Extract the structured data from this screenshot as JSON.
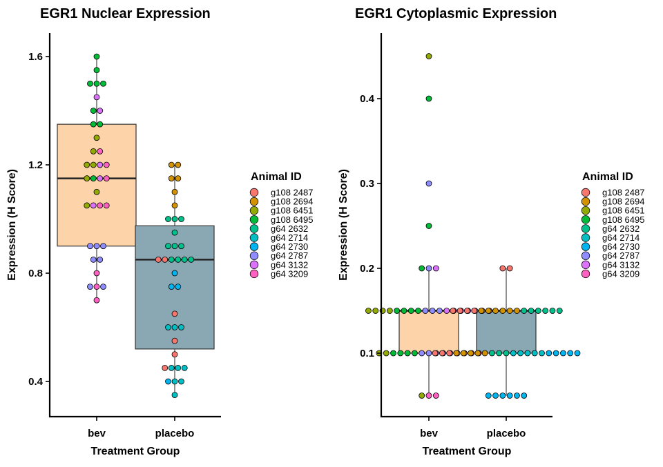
{
  "chart_data": [
    {
      "type": "boxplot",
      "title": "EGR1 Nuclear Expression",
      "xlabel": "Treatment Group",
      "ylabel": "Expression (H Score)",
      "categories": [
        "bev",
        "placebo"
      ],
      "yticks": [
        "0.4",
        "0.8",
        "1.2",
        "1.6"
      ],
      "ylim": [
        0.27,
        1.69
      ],
      "box_colors": [
        "#fdd3a9",
        "#8aa7b4"
      ],
      "boxes": [
        {
          "group": "bev",
          "q1": 0.9,
          "median": 1.15,
          "q3": 1.35,
          "whisker_low": 0.7,
          "whisker_high": 1.6
        },
        {
          "group": "placebo",
          "q1": 0.52,
          "median": 0.85,
          "q3": 0.975,
          "whisker_low": 0.35,
          "whisker_high": 1.2
        }
      ],
      "points": [
        {
          "group": "bev",
          "y": 1.6,
          "colors": [
            "#00BA38"
          ]
        },
        {
          "group": "bev",
          "y": 1.55,
          "colors": [
            "#00BA38"
          ]
        },
        {
          "group": "bev",
          "y": 1.5,
          "colors": [
            "#00BA38",
            "#00BA38",
            "#00BA38"
          ]
        },
        {
          "group": "bev",
          "y": 1.45,
          "colors": [
            "#DB72FB"
          ]
        },
        {
          "group": "bev",
          "y": 1.4,
          "colors": [
            "#00BA38",
            "#DB72FB"
          ]
        },
        {
          "group": "bev",
          "y": 1.35,
          "colors": [
            "#00BA38",
            "#00BA38"
          ]
        },
        {
          "group": "bev",
          "y": 1.3,
          "colors": [
            "#93AA00"
          ]
        },
        {
          "group": "bev",
          "y": 1.25,
          "colors": [
            "#93AA00",
            "#FF61C3"
          ]
        },
        {
          "group": "bev",
          "y": 1.2,
          "colors": [
            "#93AA00",
            "#93AA00",
            "#DB72FB",
            "#FF61C3"
          ]
        },
        {
          "group": "bev",
          "y": 1.15,
          "colors": [
            "#93AA00",
            "#00BA38",
            "#DB72FB",
            "#FF61C3"
          ]
        },
        {
          "group": "bev",
          "y": 1.1,
          "colors": [
            "#93AA00"
          ]
        },
        {
          "group": "bev",
          "y": 1.05,
          "colors": [
            "#93AA00",
            "#DB72FB",
            "#FF61C3",
            "#FF61C3"
          ]
        },
        {
          "group": "bev",
          "y": 0.9,
          "colors": [
            "#8E8CFF",
            "#8E8CFF",
            "#8E8CFF"
          ]
        },
        {
          "group": "bev",
          "y": 0.85,
          "colors": [
            "#8E8CFF",
            "#8E8CFF"
          ]
        },
        {
          "group": "bev",
          "y": 0.8,
          "colors": [
            "#FF61C3"
          ]
        },
        {
          "group": "bev",
          "y": 0.75,
          "colors": [
            "#8E8CFF",
            "#FF61C3",
            "#8E8CFF"
          ]
        },
        {
          "group": "bev",
          "y": 0.7,
          "colors": [
            "#FF61C3"
          ]
        },
        {
          "group": "placebo",
          "y": 1.2,
          "colors": [
            "#D39200",
            "#D39200"
          ]
        },
        {
          "group": "placebo",
          "y": 1.15,
          "colors": [
            "#D39200",
            "#D39200"
          ]
        },
        {
          "group": "placebo",
          "y": 1.1,
          "colors": [
            "#D39200"
          ]
        },
        {
          "group": "placebo",
          "y": 1.05,
          "colors": [
            "#D39200"
          ]
        },
        {
          "group": "placebo",
          "y": 1.0,
          "colors": [
            "#00C08B",
            "#00C08B",
            "#00C08B"
          ]
        },
        {
          "group": "placebo",
          "y": 0.95,
          "colors": [
            "#00C08B"
          ]
        },
        {
          "group": "placebo",
          "y": 0.9,
          "colors": [
            "#00C08B",
            "#00C08B",
            "#00C08B"
          ]
        },
        {
          "group": "placebo",
          "y": 0.85,
          "colors": [
            "#F8766D",
            "#F8766D",
            "#00C08B",
            "#00C08B",
            "#00C08B",
            "#00C08B"
          ]
        },
        {
          "group": "placebo",
          "y": 0.8,
          "colors": [
            "#00B4F0"
          ]
        },
        {
          "group": "placebo",
          "y": 0.75,
          "colors": [
            "#00B4F0",
            "#00B4F0"
          ]
        },
        {
          "group": "placebo",
          "y": 0.65,
          "colors": [
            "#F8766D"
          ]
        },
        {
          "group": "placebo",
          "y": 0.6,
          "colors": [
            "#00BFC4",
            "#00BFC4",
            "#00BFC4"
          ]
        },
        {
          "group": "placebo",
          "y": 0.55,
          "colors": [
            "#F8766D"
          ]
        },
        {
          "group": "placebo",
          "y": 0.5,
          "colors": [
            "#F8766D"
          ]
        },
        {
          "group": "placebo",
          "y": 0.45,
          "colors": [
            "#F8766D",
            "#00BFC4",
            "#00BFC4",
            "#00BFC4"
          ]
        },
        {
          "group": "placebo",
          "y": 0.4,
          "colors": [
            "#00B4F0",
            "#00BFC4",
            "#00BFC4"
          ]
        },
        {
          "group": "placebo",
          "y": 0.35,
          "colors": [
            "#00BFC4"
          ]
        }
      ]
    },
    {
      "type": "boxplot",
      "title": "EGR1 Cytoplasmic Expression",
      "xlabel": "Treatment Group",
      "ylabel": "Expression (H Score)",
      "categories": [
        "bev",
        "placebo"
      ],
      "yticks": [
        "0.1",
        "0.2",
        "0.3",
        "0.4"
      ],
      "ylim": [
        0.025,
        0.48
      ],
      "box_colors": [
        "#fdd3a9",
        "#8aa7b4"
      ],
      "boxes": [
        {
          "group": "bev",
          "q1": 0.1,
          "median": 0.15,
          "q3": 0.15,
          "whisker_low": 0.05,
          "whisker_high": 0.2
        },
        {
          "group": "placebo",
          "q1": 0.1,
          "median": 0.15,
          "q3": 0.15,
          "whisker_low": 0.05,
          "whisker_high": 0.2
        }
      ],
      "outliers": [
        {
          "group": "bev",
          "y": 0.45,
          "color": "#93AA00"
        },
        {
          "group": "bev",
          "y": 0.4,
          "color": "#00BA38"
        },
        {
          "group": "bev",
          "y": 0.3,
          "color": "#8E8CFF"
        },
        {
          "group": "bev",
          "y": 0.25,
          "color": "#00BA38"
        }
      ],
      "points": [
        {
          "group": "bev",
          "y": 0.2,
          "colors": [
            "#00BA38",
            "#8E8CFF",
            "#DB72FB"
          ]
        },
        {
          "group": "bev",
          "y": 0.15,
          "colors": [
            "#93AA00",
            "#93AA00",
            "#93AA00",
            "#93AA00",
            "#00BA38",
            "#00BA38",
            "#00BA38",
            "#00BA38",
            "#8E8CFF",
            "#8E8CFF",
            "#8E8CFF",
            "#DB72FB",
            "#DB72FB",
            "#DB72FB",
            "#DB72FB",
            "#FF61C3",
            "#FF61C3",
            "#FF61C3"
          ]
        },
        {
          "group": "bev",
          "y": 0.1,
          "colors": [
            "#93AA00",
            "#93AA00",
            "#00BA38",
            "#00BA38",
            "#00BA38",
            "#00BA38",
            "#8E8CFF",
            "#8E8CFF",
            "#8E8CFF",
            "#8E8CFF",
            "#DB72FB",
            "#DB72FB",
            "#FF61C3",
            "#FF61C3",
            "#FF61C3"
          ]
        },
        {
          "group": "bev",
          "y": 0.05,
          "colors": [
            "#93AA00",
            "#FF61C3",
            "#FF61C3"
          ]
        },
        {
          "group": "placebo",
          "y": 0.2,
          "colors": [
            "#F8766D",
            "#F8766D"
          ]
        },
        {
          "group": "placebo",
          "y": 0.15,
          "colors": [
            "#F8766D",
            "#F8766D",
            "#F8766D",
            "#F8766D",
            "#D39200",
            "#D39200",
            "#D39200",
            "#D39200",
            "#D39200",
            "#D39200",
            "#00C08B",
            "#00C08B",
            "#00C08B",
            "#00C08B",
            "#00C08B",
            "#00C08B"
          ]
        },
        {
          "group": "placebo",
          "y": 0.1,
          "colors": [
            "#F8766D",
            "#F8766D",
            "#F8766D",
            "#D39200",
            "#D39200",
            "#D39200",
            "#D39200",
            "#D39200",
            "#00C08B",
            "#00C08B",
            "#00C08B",
            "#00BFC4",
            "#00BFC4",
            "#00BFC4",
            "#00BFC4",
            "#00BFC4",
            "#00B4F0",
            "#00B4F0",
            "#00B4F0",
            "#00B4F0",
            "#00B4F0"
          ]
        },
        {
          "group": "placebo",
          "y": 0.05,
          "colors": [
            "#00B4F0",
            "#00B4F0",
            "#00B4F0",
            "#00B4F0",
            "#00B4F0",
            "#00B4F0"
          ]
        }
      ]
    }
  ],
  "legend": {
    "title": "Animal ID",
    "entries": [
      {
        "label": "g108 2487",
        "color": "#F8766D"
      },
      {
        "label": "g108 2694",
        "color": "#D39200"
      },
      {
        "label": "g108 6451",
        "color": "#93AA00"
      },
      {
        "label": "g108 6495",
        "color": "#00BA38"
      },
      {
        "label": "g64 2632",
        "color": "#00C08B"
      },
      {
        "label": "g64 2714",
        "color": "#00BFC4"
      },
      {
        "label": "g64 2730",
        "color": "#00B4F0"
      },
      {
        "label": "g64 2787",
        "color": "#8E8CFF"
      },
      {
        "label": "g64 3132",
        "color": "#DB72FB"
      },
      {
        "label": "g64 3209",
        "color": "#FF61C3"
      }
    ]
  }
}
